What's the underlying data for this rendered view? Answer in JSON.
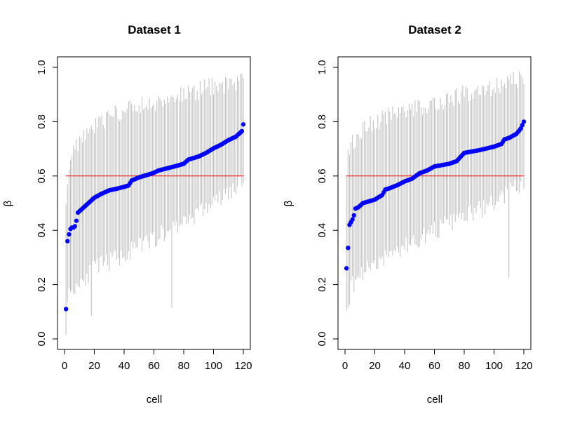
{
  "chart_data": [
    {
      "type": "scatter",
      "title": "Dataset 1",
      "xlabel": "cell",
      "ylabel": "β",
      "xlim": [
        0,
        120
      ],
      "ylim": [
        0.0,
        1.0
      ],
      "xticks": [
        "0",
        "20",
        "40",
        "60",
        "80",
        "100",
        "120"
      ],
      "yticks": [
        "0.0",
        "0.2",
        "0.4",
        "0.6",
        "0.8",
        "1.0"
      ],
      "reference_line": 0.6,
      "point_color": "#0000ff",
      "interval_color": "#bebebe",
      "reference_color": "#ff0000",
      "grid": false,
      "anchors": [
        [
          1,
          0.11
        ],
        [
          2,
          0.36
        ],
        [
          3,
          0.385
        ],
        [
          4,
          0.405
        ],
        [
          5,
          0.41
        ],
        [
          6,
          0.41
        ],
        [
          7,
          0.415
        ],
        [
          8,
          0.435
        ],
        [
          9,
          0.465
        ],
        [
          10,
          0.47
        ],
        [
          13,
          0.485
        ],
        [
          15,
          0.495
        ],
        [
          18,
          0.51
        ],
        [
          20,
          0.52
        ],
        [
          25,
          0.535
        ],
        [
          30,
          0.547
        ],
        [
          35,
          0.553
        ],
        [
          40,
          0.56
        ],
        [
          43,
          0.565
        ],
        [
          45,
          0.583
        ],
        [
          50,
          0.595
        ],
        [
          55,
          0.603
        ],
        [
          60,
          0.612
        ],
        [
          63,
          0.62
        ],
        [
          70,
          0.63
        ],
        [
          75,
          0.637
        ],
        [
          80,
          0.645
        ],
        [
          83,
          0.66
        ],
        [
          90,
          0.672
        ],
        [
          95,
          0.685
        ],
        [
          100,
          0.702
        ],
        [
          105,
          0.715
        ],
        [
          110,
          0.732
        ],
        [
          115,
          0.745
        ],
        [
          118,
          0.76
        ],
        [
          119,
          0.765
        ],
        [
          120,
          0.79
        ]
      ],
      "lower_anchors": [
        [
          1,
          0.05
        ],
        [
          2,
          0.15
        ],
        [
          5,
          0.18
        ],
        [
          10,
          0.21
        ],
        [
          20,
          0.26
        ],
        [
          40,
          0.31
        ],
        [
          60,
          0.37
        ],
        [
          80,
          0.43
        ],
        [
          100,
          0.5
        ],
        [
          120,
          0.575
        ]
      ],
      "upper_anchors": [
        [
          1,
          0.5
        ],
        [
          2,
          0.6
        ],
        [
          5,
          0.69
        ],
        [
          10,
          0.73
        ],
        [
          20,
          0.79
        ],
        [
          40,
          0.84
        ],
        [
          60,
          0.87
        ],
        [
          80,
          0.9
        ],
        [
          100,
          0.93
        ],
        [
          120,
          0.95
        ]
      ],
      "outliers": [
        [
          18,
          0.085
        ],
        [
          72,
          0.115
        ],
        [
          67,
          0.36
        ]
      ]
    },
    {
      "type": "scatter",
      "title": "Dataset 2",
      "xlabel": "cell",
      "ylabel": "β",
      "xlim": [
        0,
        120
      ],
      "ylim": [
        0.0,
        1.0
      ],
      "xticks": [
        "0",
        "20",
        "40",
        "60",
        "80",
        "100",
        "120"
      ],
      "yticks": [
        "0.0",
        "0.2",
        "0.4",
        "0.6",
        "0.8",
        "1.0"
      ],
      "reference_line": 0.6,
      "point_color": "#0000ff",
      "interval_color": "#bebebe",
      "reference_color": "#ff0000",
      "grid": false,
      "anchors": [
        [
          1,
          0.26
        ],
        [
          2,
          0.335
        ],
        [
          3,
          0.42
        ],
        [
          4,
          0.43
        ],
        [
          5,
          0.44
        ],
        [
          6,
          0.455
        ],
        [
          7,
          0.48
        ],
        [
          9,
          0.485
        ],
        [
          12,
          0.5
        ],
        [
          15,
          0.505
        ],
        [
          20,
          0.513
        ],
        [
          22,
          0.52
        ],
        [
          25,
          0.53
        ],
        [
          27,
          0.55
        ],
        [
          30,
          0.555
        ],
        [
          35,
          0.566
        ],
        [
          40,
          0.58
        ],
        [
          45,
          0.59
        ],
        [
          50,
          0.61
        ],
        [
          55,
          0.62
        ],
        [
          60,
          0.635
        ],
        [
          65,
          0.64
        ],
        [
          70,
          0.645
        ],
        [
          75,
          0.655
        ],
        [
          80,
          0.685
        ],
        [
          90,
          0.695
        ],
        [
          100,
          0.708
        ],
        [
          105,
          0.718
        ],
        [
          107,
          0.735
        ],
        [
          110,
          0.74
        ],
        [
          115,
          0.755
        ],
        [
          118,
          0.775
        ],
        [
          120,
          0.8
        ]
      ],
      "lower_anchors": [
        [
          1,
          0.09
        ],
        [
          2,
          0.14
        ],
        [
          5,
          0.2
        ],
        [
          10,
          0.24
        ],
        [
          20,
          0.28
        ],
        [
          40,
          0.34
        ],
        [
          60,
          0.4
        ],
        [
          80,
          0.45
        ],
        [
          100,
          0.5
        ],
        [
          120,
          0.58
        ]
      ],
      "upper_anchors": [
        [
          1,
          0.58
        ],
        [
          2,
          0.67
        ],
        [
          5,
          0.73
        ],
        [
          10,
          0.76
        ],
        [
          20,
          0.8
        ],
        [
          40,
          0.84
        ],
        [
          60,
          0.87
        ],
        [
          80,
          0.9
        ],
        [
          100,
          0.93
        ],
        [
          120,
          0.96
        ]
      ],
      "outliers": [
        [
          110,
          0.225
        ]
      ]
    }
  ]
}
